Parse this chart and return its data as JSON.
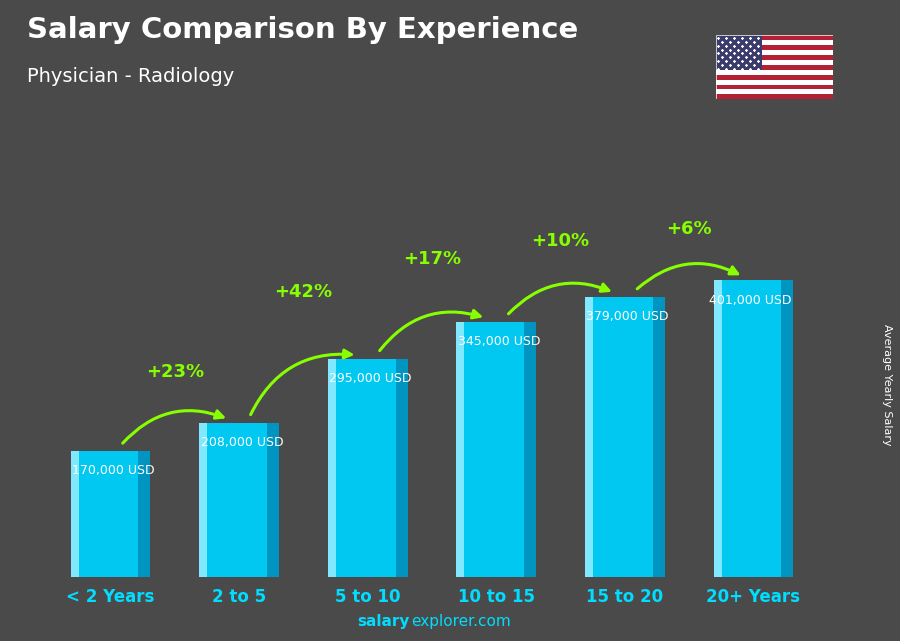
{
  "title": "Salary Comparison By Experience",
  "subtitle": "Physician - Radiology",
  "categories": [
    "< 2 Years",
    "2 to 5",
    "5 to 10",
    "10 to 15",
    "15 to 20",
    "20+ Years"
  ],
  "values": [
    170000,
    208000,
    295000,
    345000,
    379000,
    401000
  ],
  "labels": [
    "170,000 USD",
    "208,000 USD",
    "295,000 USD",
    "345,000 USD",
    "379,000 USD",
    "401,000 USD"
  ],
  "pct_changes": [
    "+23%",
    "+42%",
    "+17%",
    "+10%",
    "+6%"
  ],
  "bar_color_main": "#00C8F0",
  "bar_color_dark": "#0075A0",
  "bar_color_right": "#0095C0",
  "bar_color_light": "#80E8FF",
  "bg_color": "#4a4a4a",
  "title_color": "#FFFFFF",
  "subtitle_color": "#FFFFFF",
  "label_color": "#FFFFFF",
  "pct_color": "#88FF00",
  "xlabel_color": "#00DDFF",
  "footer_salary_color": "#FFFFFF",
  "footer_explorer_color": "#FFFFFF",
  "ylabel_text": "Average Yearly Salary",
  "ylim": [
    0,
    520000
  ],
  "bar_width": 0.62,
  "arrow_color": "#88FF00"
}
